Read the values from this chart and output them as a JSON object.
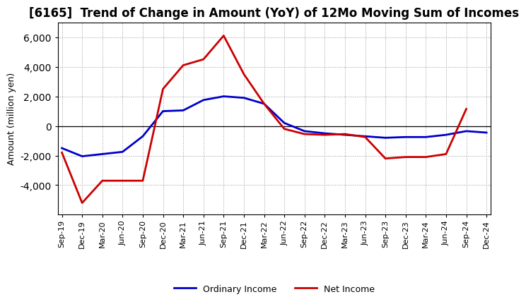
{
  "title": "[6165]  Trend of Change in Amount (YoY) of 12Mo Moving Sum of Incomes",
  "ylabel": "Amount (million yen)",
  "xlabels": [
    "Sep-19",
    "Dec-19",
    "Mar-20",
    "Jun-20",
    "Sep-20",
    "Dec-20",
    "Mar-21",
    "Jun-21",
    "Sep-21",
    "Dec-21",
    "Mar-22",
    "Jun-22",
    "Sep-22",
    "Dec-22",
    "Mar-23",
    "Jun-23",
    "Sep-23",
    "Dec-23",
    "Mar-24",
    "Jun-24",
    "Sep-24",
    "Dec-24"
  ],
  "ordinary_income": [
    -1500,
    -2050,
    -1900,
    -1750,
    -700,
    1000,
    1050,
    1750,
    2000,
    1900,
    1500,
    200,
    -350,
    -500,
    -600,
    -700,
    -800,
    -750,
    -750,
    -600,
    -350,
    -450
  ],
  "net_income": [
    -1800,
    -5200,
    -3700,
    -3700,
    -3700,
    2500,
    4100,
    4500,
    6100,
    3500,
    1500,
    -200,
    -550,
    -600,
    -550,
    -750,
    -2200,
    -2100,
    -2100,
    -1900,
    1150,
    null
  ],
  "ylim": [
    -6000,
    7000
  ],
  "yticks": [
    -4000,
    -2000,
    0,
    2000,
    4000,
    6000
  ],
  "ordinary_color": "#0000cc",
  "net_color": "#cc0000",
  "background_color": "#ffffff",
  "grid_color": "#999999",
  "legend_ordinary": "Ordinary Income",
  "legend_net": "Net Income",
  "title_fontsize": 12,
  "axis_label_fontsize": 9,
  "tick_fontsize": 8,
  "legend_fontsize": 9,
  "linewidth": 2.0
}
